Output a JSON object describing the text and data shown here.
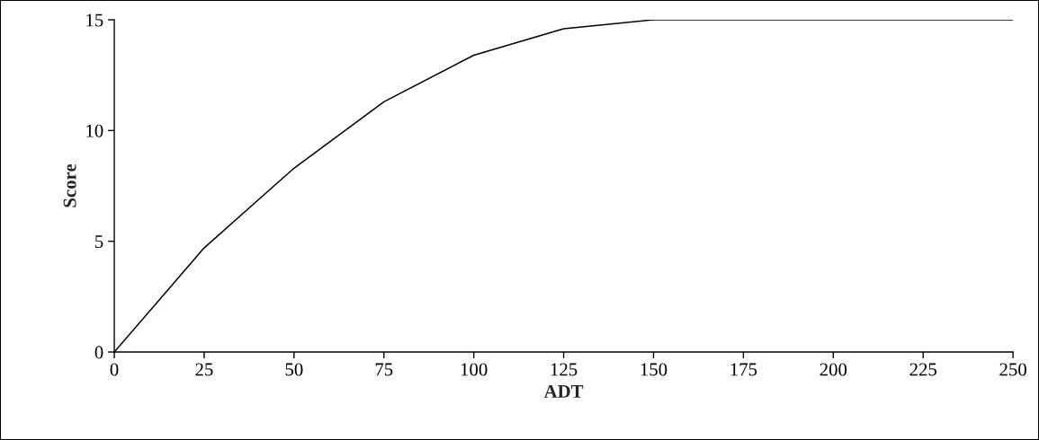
{
  "chart_data": {
    "type": "line",
    "xlabel": "ADT",
    "ylabel": "Score",
    "x": [
      0,
      25,
      50,
      75,
      100,
      125,
      150,
      175,
      200,
      225,
      250
    ],
    "series": [
      {
        "color": "#000000",
        "values": [
          0,
          4.7,
          8.3,
          11.3,
          13.4,
          14.6,
          15,
          15,
          15,
          15,
          15
        ]
      }
    ],
    "xlim": [
      0,
      250
    ],
    "xticks": [
      0,
      25,
      50,
      75,
      100,
      125,
      150,
      175,
      200,
      225,
      250
    ],
    "ylim": [
      0,
      15
    ],
    "yticks": [
      0,
      5,
      10,
      15
    ],
    "grid": false,
    "marker": "none",
    "line_style": "solid"
  }
}
